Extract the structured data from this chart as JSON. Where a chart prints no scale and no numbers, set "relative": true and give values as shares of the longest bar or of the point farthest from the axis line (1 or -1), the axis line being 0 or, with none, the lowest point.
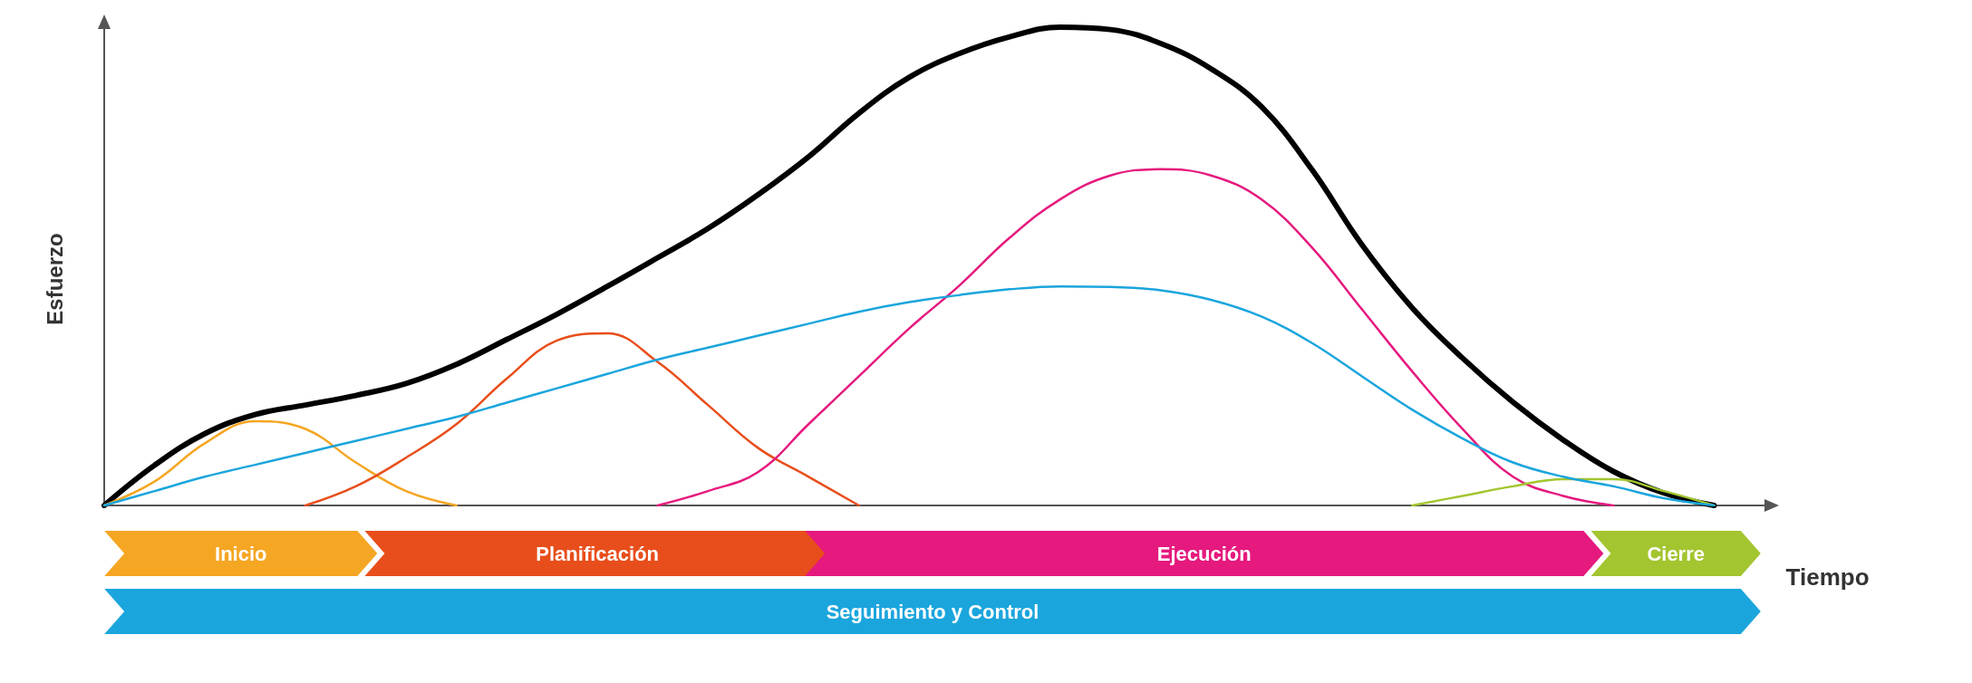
{
  "chart_data": {
    "type": "line",
    "relative": true,
    "xlabel": "Tiempo",
    "ylabel": "Esfuerzo",
    "legend": "bottom",
    "grid": false,
    "marker": "none",
    "categories": [
      null,
      null,
      null,
      null,
      null,
      null,
      null,
      null,
      null,
      null,
      null,
      null,
      null,
      null,
      null,
      null,
      null,
      null,
      null,
      null,
      null,
      null,
      null,
      null,
      null,
      null,
      null,
      null,
      null,
      null,
      null,
      null,
      null,
      null
    ],
    "series": [
      {
        "color": "#000000",
        "values": [
          0,
          0.084,
          0.15,
          0.19,
          0.21,
          0.23,
          0.255,
          0.295,
          0.347,
          0.4,
          0.458,
          0.518,
          0.579,
          0.65,
          0.729,
          0.82,
          0.895,
          0.945,
          0.98,
          1,
          0.995,
          0.966,
          0.913,
          0.834,
          0.703,
          0.545,
          0.413,
          0.308,
          0.216,
          0.137,
          0.071,
          0.026,
          0,
          null
        ]
      },
      {
        "name": "Inicio",
        "color": "#f5a623",
        "values": [
          0,
          0.05,
          0.13,
          0.176,
          0.16,
          0.09,
          0.03,
          0,
          null,
          null,
          null,
          null,
          null,
          null,
          null,
          null,
          null,
          null,
          null,
          null,
          null,
          null,
          null,
          null,
          null,
          null,
          null,
          null,
          null,
          null,
          null,
          null,
          null,
          null
        ]
      },
      {
        "name": "Planificación",
        "color": "#e84e1b",
        "values": [
          null,
          null,
          null,
          null,
          0,
          0.04,
          0.1,
          0.17,
          0.265,
          0.345,
          0.36,
          0.3,
          0.21,
          0.12,
          0.06,
          0,
          null,
          null,
          null,
          null,
          null,
          null,
          null,
          null,
          null,
          null,
          null,
          null,
          null,
          null,
          null,
          null,
          null,
          null
        ]
      },
      {
        "name": "Ejecución",
        "color": "#e5197e",
        "values": [
          null,
          null,
          null,
          null,
          null,
          null,
          null,
          null,
          null,
          null,
          null,
          0,
          0.03,
          0.07,
          0.17,
          0.27,
          0.37,
          0.46,
          0.56,
          0.64,
          0.69,
          0.703,
          0.69,
          0.64,
          0.54,
          0.41,
          0.28,
          0.16,
          0.06,
          0.02,
          0,
          null,
          null,
          null
        ]
      },
      {
        "name": "Cierre",
        "color": "#a3c52f",
        "values": [
          null,
          null,
          null,
          null,
          null,
          null,
          null,
          null,
          null,
          null,
          null,
          null,
          null,
          null,
          null,
          null,
          null,
          null,
          null,
          null,
          null,
          null,
          null,
          null,
          null,
          null,
          0,
          0.02,
          0.04,
          0.055,
          0.055,
          0.03,
          0,
          null
        ]
      },
      {
        "name": "Seguimiento y Control",
        "color": "#1ba5dd",
        "values": [
          0,
          0.03,
          0.06,
          0.085,
          0.11,
          0.135,
          0.16,
          0.185,
          0.215,
          0.245,
          0.275,
          0.305,
          0.33,
          0.355,
          0.38,
          0.405,
          0.425,
          0.44,
          0.452,
          0.458,
          0.457,
          0.45,
          0.43,
          0.395,
          0.34,
          0.27,
          0.2,
          0.14,
          0.09,
          0.06,
          0.04,
          0.015,
          0,
          null
        ]
      }
    ]
  }
}
